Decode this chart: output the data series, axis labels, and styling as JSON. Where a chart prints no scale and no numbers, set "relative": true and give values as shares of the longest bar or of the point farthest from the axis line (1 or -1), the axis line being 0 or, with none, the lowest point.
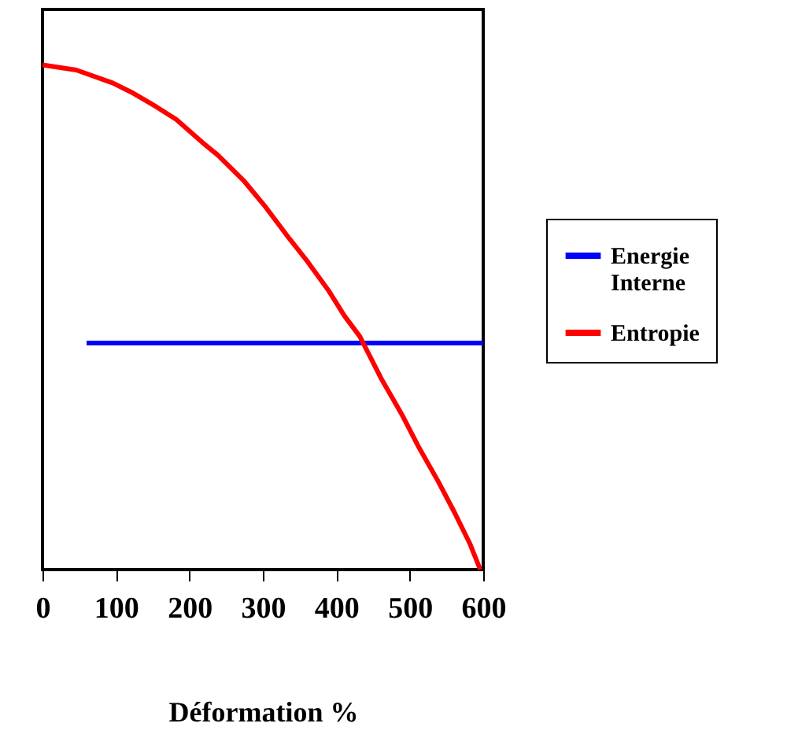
{
  "chart_data": {
    "type": "line",
    "xlabel": "Déformation %",
    "relative": true,
    "xlim": [
      0,
      600
    ],
    "xticks": [
      0,
      100,
      200,
      300,
      400,
      500,
      600
    ],
    "legend": "right",
    "grid": false,
    "marker": "none",
    "line_style": "solid",
    "series": [
      {
        "name": "Energie Interne",
        "color": "#0000ff",
        "x": [
          60,
          150,
          250,
          350,
          450,
          550,
          600
        ],
        "values": [
          0.449,
          0.449,
          0.449,
          0.449,
          0.449,
          0.449,
          0.449
        ]
      },
      {
        "name": "Entropie",
        "color": "#ff0000",
        "x": [
          0,
          46,
          96,
          121,
          154,
          182,
          218,
          239,
          275,
          304,
          336,
          361,
          389,
          411,
          432,
          461,
          489,
          511,
          539,
          561,
          582,
          596
        ],
        "values": [
          1,
          0.99,
          0.964,
          0.946,
          0.918,
          0.892,
          0.846,
          0.821,
          0.769,
          0.718,
          0.656,
          0.61,
          0.554,
          0.503,
          0.462,
          0.379,
          0.308,
          0.246,
          0.174,
          0.113,
          0.051,
          0
        ]
      }
    ]
  }
}
